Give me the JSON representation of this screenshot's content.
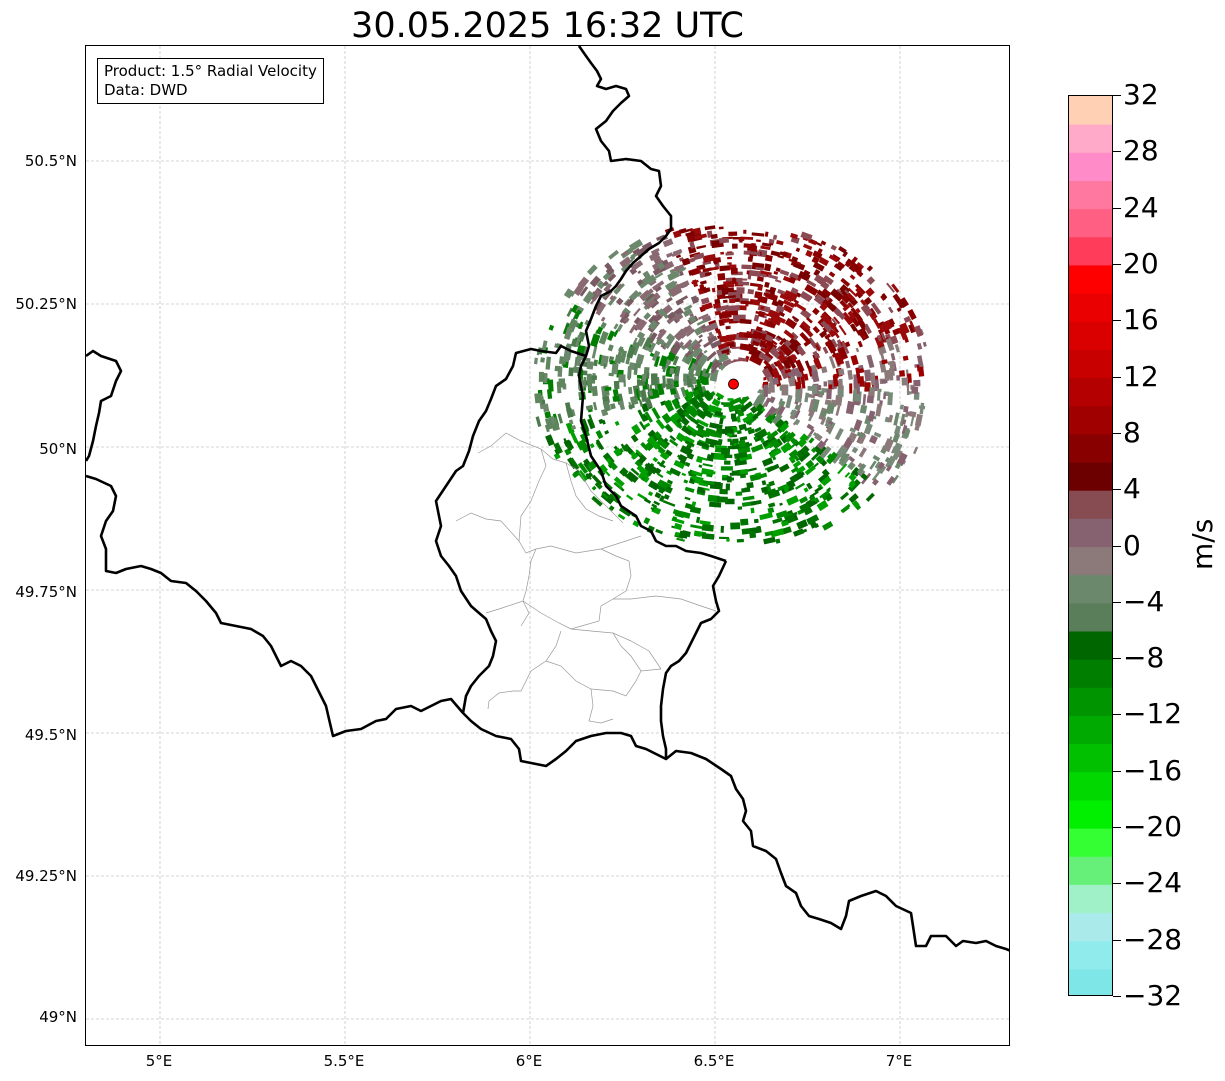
{
  "title": "30.05.2025 16:32 UTC",
  "info": {
    "product": "Product: 1.5° Radial Velocity",
    "data": "Data: DWD"
  },
  "axes": {
    "lon_ticks": [
      "5°E",
      "5.5°E",
      "6°E",
      "6.5°E",
      "7°E"
    ],
    "lat_ticks": [
      "50.5°N",
      "50.25°N",
      "50°N",
      "49.75°N",
      "49.5°N",
      "49.25°N",
      "49°N"
    ]
  },
  "radar_site": {
    "lon": 6.55,
    "lat": 50.11,
    "color": "#ff0000"
  },
  "colorbar": {
    "unit": "m/s",
    "min": -32,
    "max": 32,
    "tick_labels": [
      "32",
      "28",
      "24",
      "20",
      "16",
      "12",
      "8",
      "4",
      "0",
      "−4",
      "−8",
      "−12",
      "−16",
      "−20",
      "−24",
      "−28",
      "−32"
    ],
    "colors_low_to_high": [
      "#7ee6e6",
      "#90ecec",
      "#aaeaea",
      "#a0f0c8",
      "#66f07a",
      "#33ff33",
      "#00f000",
      "#00d800",
      "#00c000",
      "#00aa00",
      "#009400",
      "#007e00",
      "#006600",
      "#5a7e5a",
      "#6c886c",
      "#8c7a7a",
      "#866270",
      "#864c52",
      "#6c0000",
      "#880000",
      "#a00000",
      "#b40000",
      "#c80000",
      "#da0000",
      "#ea0000",
      "#ff0000",
      "#ff3c5a",
      "#ff5f82",
      "#ff78a0",
      "#ff8cc8",
      "#ffaac8",
      "#ffd0b4"
    ]
  }
}
